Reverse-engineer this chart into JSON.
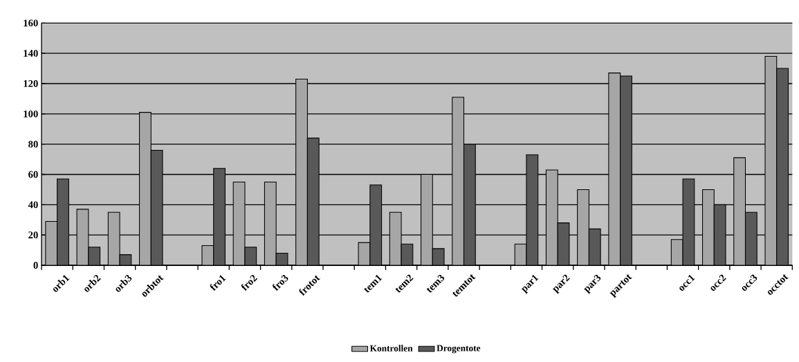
{
  "chart_data": {
    "type": "bar",
    "categories": [
      "orb1",
      "orb2",
      "orb3",
      "orbtot",
      null,
      "fro1",
      "fro2",
      "fro3",
      "frotot",
      null,
      "tem1",
      "tem2",
      "tem3",
      "temtot",
      null,
      "par1",
      "par2",
      "par3",
      "partot",
      null,
      "occ1",
      "occ2",
      "occ3",
      "occtot"
    ],
    "series": [
      {
        "name": "Kontrollen",
        "color": "#a6a6a6",
        "values": [
          29,
          37,
          35,
          101,
          null,
          13,
          55,
          55,
          123,
          null,
          15,
          35,
          60,
          111,
          null,
          14,
          63,
          50,
          127,
          null,
          17,
          50,
          71,
          138
        ]
      },
      {
        "name": "Drogentote",
        "color": "#595959",
        "values": [
          57,
          12,
          7,
          76,
          null,
          64,
          12,
          8,
          84,
          null,
          53,
          14,
          11,
          80,
          null,
          73,
          28,
          24,
          125,
          null,
          57,
          40,
          35,
          130
        ]
      }
    ],
    "ylim": [
      0,
      160
    ],
    "yticks": [
      0,
      20,
      40,
      60,
      80,
      100,
      120,
      140,
      160
    ],
    "grid": "y",
    "legend": "bottom"
  }
}
